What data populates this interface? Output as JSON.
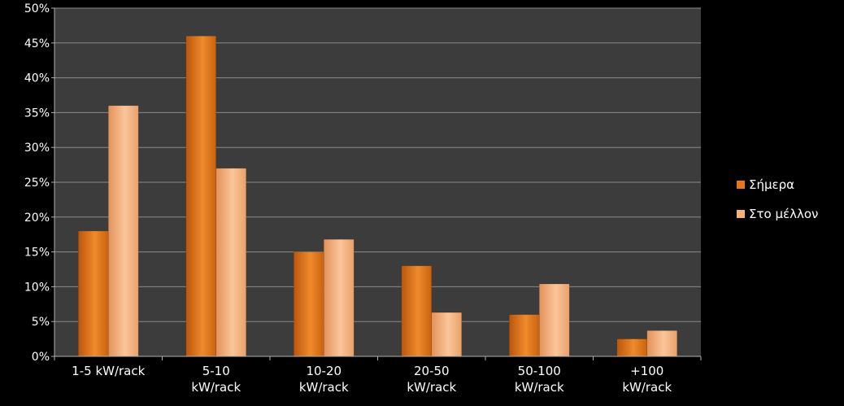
{
  "chart_data": {
    "type": "bar",
    "title": "",
    "xlabel": "",
    "ylabel": "",
    "ylim": [
      0,
      50
    ],
    "y_ticks": [
      "0%",
      "5%",
      "10%",
      "15%",
      "20%",
      "25%",
      "30%",
      "35%",
      "40%",
      "45%",
      "50%"
    ],
    "y_tick_values": [
      0,
      5,
      10,
      15,
      20,
      25,
      30,
      35,
      40,
      45,
      50
    ],
    "categories": [
      [
        "1-5 kW/rack"
      ],
      [
        "5-10",
        "kW/rack"
      ],
      [
        "10-20",
        "kW/rack"
      ],
      [
        "20-50",
        "kW/rack"
      ],
      [
        "50-100",
        "kW/rack"
      ],
      [
        "+100",
        "kW/rack"
      ]
    ],
    "series": [
      {
        "name": "Σήμερα",
        "values": [
          18,
          46,
          15,
          13,
          6,
          2.5
        ],
        "color": "#e8761e"
      },
      {
        "name": "Στο μέλλον",
        "values": [
          36,
          27,
          16.8,
          6.3,
          10.4,
          3.7
        ],
        "color": "#f7b07a"
      }
    ],
    "grid": true,
    "legend": "right",
    "background": "#3c3c3c",
    "page_background": "#000000",
    "text_color": "#ffffff",
    "grid_color": "#8a8a8a"
  }
}
